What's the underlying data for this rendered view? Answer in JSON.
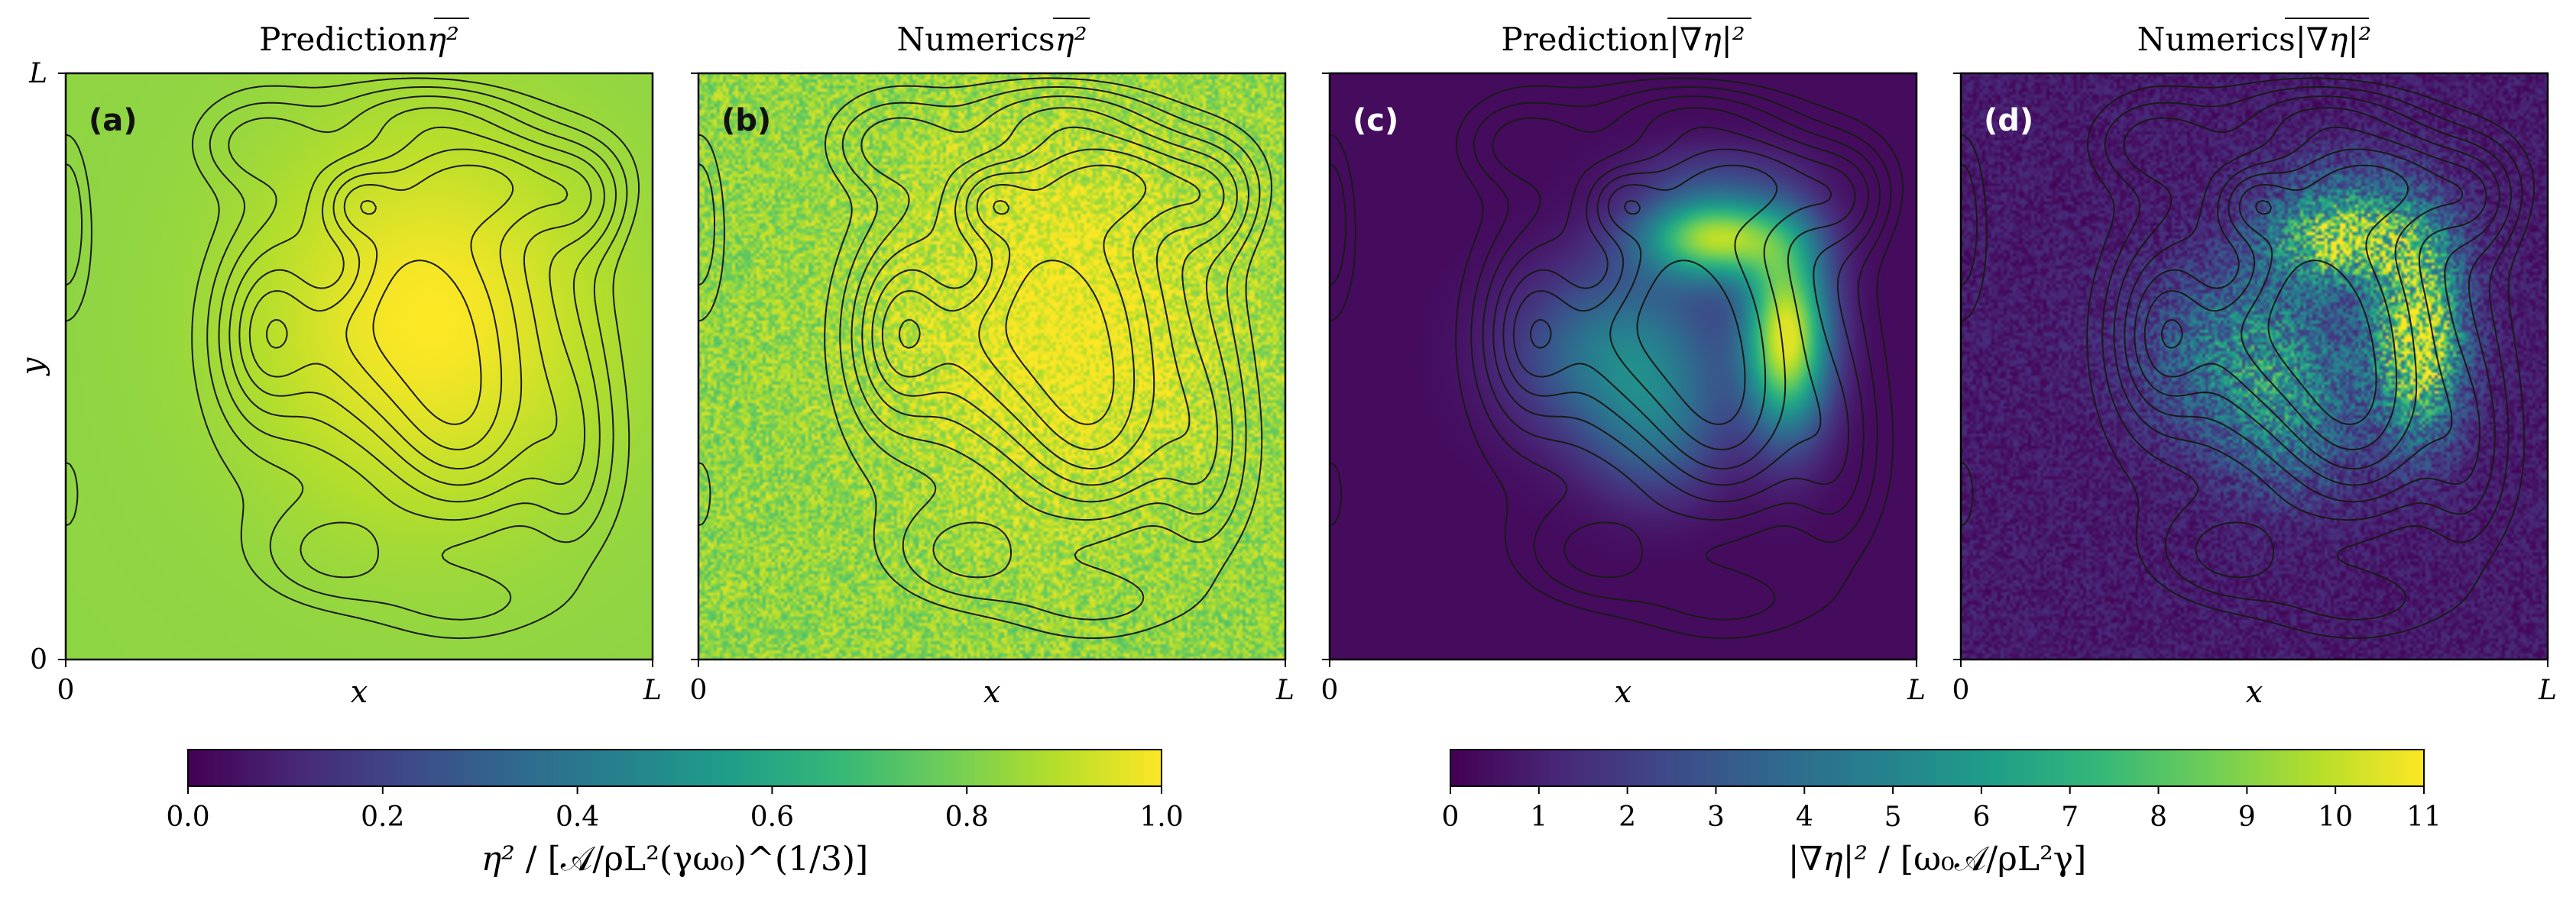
{
  "chart_data": [
    {
      "type": "heatmap",
      "panel": "(a)",
      "title": "Prediction",
      "title_math": "η²",
      "title_overline": true,
      "xlabel": "x",
      "ylabel": "y",
      "xticks": [
        "0",
        "L"
      ],
      "yticks": [
        "0",
        "L"
      ],
      "field": "eta2",
      "source": "prediction",
      "colormap": "viridis",
      "vmin": 0.0,
      "vmax": 1.0,
      "background_level": 0.83,
      "peak_level": 1.0
    },
    {
      "type": "heatmap",
      "panel": "(b)",
      "title": "Numerics",
      "title_math": "η²",
      "title_overline": true,
      "xlabel": "x",
      "ylabel": "",
      "xticks": [
        "0",
        "L"
      ],
      "yticks": [],
      "field": "eta2",
      "source": "numerics",
      "colormap": "viridis",
      "vmin": 0.0,
      "vmax": 1.0,
      "background_level": 0.83,
      "peak_level": 1.0,
      "noise": 0.12
    },
    {
      "type": "heatmap",
      "panel": "(c)",
      "title": "Prediction",
      "title_math": "|∇η|²",
      "title_overline": true,
      "xlabel": "x",
      "ylabel": "",
      "xticks": [
        "0",
        "L"
      ],
      "yticks": [],
      "field": "grad2",
      "source": "prediction",
      "colormap": "viridis",
      "vmin": 0,
      "vmax": 11,
      "background_level": 0.3,
      "peak_level": 10.5
    },
    {
      "type": "heatmap",
      "panel": "(d)",
      "title": "Numerics",
      "title_math": "|∇η|²",
      "title_overline": true,
      "xlabel": "x",
      "ylabel": "",
      "xticks": [
        "0",
        "L"
      ],
      "yticks": [],
      "field": "grad2",
      "source": "numerics",
      "colormap": "viridis",
      "vmin": 0,
      "vmax": 11,
      "background_level": 0.8,
      "peak_level": 10.5,
      "noise": 0.45
    }
  ],
  "colorbars": [
    {
      "name": "eta2-colorbar",
      "colormap": "viridis",
      "vmin": 0.0,
      "vmax": 1.0,
      "ticks": [
        "0.0",
        "0.2",
        "0.4",
        "0.6",
        "0.8",
        "1.0"
      ],
      "tick_values": [
        0.0,
        0.2,
        0.4,
        0.6,
        0.8,
        1.0
      ],
      "label_main": "η²",
      "label_rest": " / [𝒜/ρL²(γω₀)^(1/3)]"
    },
    {
      "name": "grad2-colorbar",
      "colormap": "viridis",
      "vmin": 0,
      "vmax": 11,
      "ticks": [
        "0",
        "1",
        "2",
        "3",
        "4",
        "5",
        "6",
        "7",
        "8",
        "9",
        "10",
        "11"
      ],
      "tick_values": [
        0,
        1,
        2,
        3,
        4,
        5,
        6,
        7,
        8,
        9,
        10,
        11
      ],
      "label_main": "|∇η|²",
      "label_rest": " / [ω₀𝒜/ρL²γ]"
    }
  ],
  "colors": {
    "contour": "#1a1a1a",
    "panel_label_dark": "#111111",
    "panel_label_light": "#ffffff"
  }
}
